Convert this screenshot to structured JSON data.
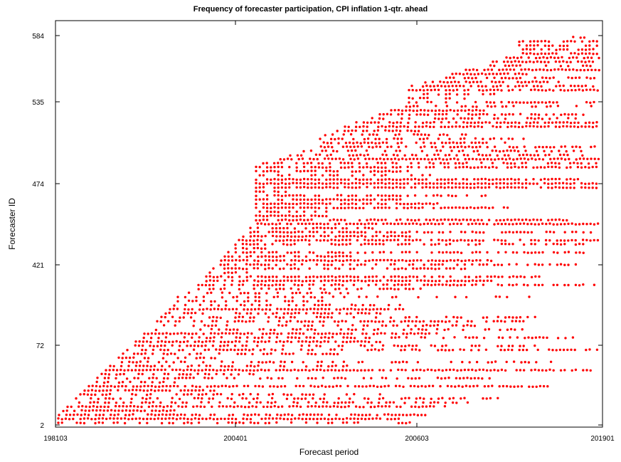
{
  "chart_data": {
    "type": "scatter",
    "title": "Frequency of forecaster participation, CPI inflation 1-qtr. ahead",
    "xlabel": "Forecast period",
    "ylabel": "Forecaster ID",
    "x_ticks": [
      "198103",
      "200401",
      "200603",
      "201901"
    ],
    "y_ticks": [
      "2",
      "72",
      "421",
      "474",
      "535",
      "584"
    ],
    "marker_color": "#ff0000",
    "grid": false,
    "legend": "none",
    "series": [
      {
        "points_description": "One dot per forecaster per quarter in which that forecaster submitted a forecast",
        "x_range": [
          "198103",
          "201901"
        ],
        "y_rank_range": [
          2,
          584
        ]
      }
    ]
  }
}
